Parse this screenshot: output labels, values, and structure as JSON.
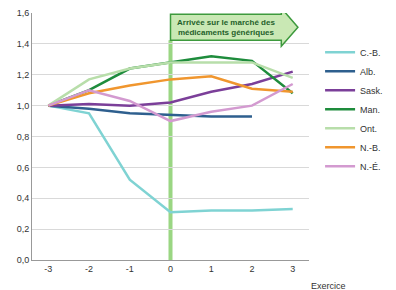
{
  "chart_data": {
    "type": "line",
    "x": [
      -3,
      -2,
      -1,
      0,
      1,
      2,
      3
    ],
    "x_label": "Exercice",
    "series": [
      {
        "name": "C.-B.",
        "color": "#7fd3d3",
        "values": [
          1.0,
          0.95,
          0.52,
          0.31,
          0.32,
          0.32,
          0.33
        ]
      },
      {
        "name": "Alb.",
        "color": "#2e5f8e",
        "values": [
          1.0,
          0.98,
          0.95,
          0.94,
          0.93,
          0.93,
          null
        ]
      },
      {
        "name": "Sask.",
        "color": "#7b3f99",
        "values": [
          1.0,
          1.01,
          1.0,
          1.02,
          1.09,
          1.14,
          1.22
        ]
      },
      {
        "name": "Man.",
        "color": "#1e8c3c",
        "values": [
          1.0,
          1.1,
          1.24,
          1.28,
          1.32,
          1.29,
          1.08
        ]
      },
      {
        "name": "Ont.",
        "color": "#b8deaa",
        "values": [
          1.0,
          1.17,
          1.24,
          1.28,
          1.28,
          1.28,
          1.18
        ]
      },
      {
        "name": "N.-B.",
        "color": "#f0962e",
        "values": [
          1.0,
          1.08,
          1.13,
          1.17,
          1.19,
          1.11,
          1.09
        ]
      },
      {
        "name": "N.-É.",
        "color": "#d39ad0",
        "values": [
          1.0,
          1.1,
          1.03,
          0.9,
          0.96,
          1.0,
          1.14
        ]
      }
    ],
    "xlim": [
      -3.4,
      3.4
    ],
    "xticks": [
      -3,
      -2,
      -1,
      0,
      1,
      2,
      3
    ],
    "ylim": [
      0,
      1.6
    ],
    "yticks": [
      {
        "value": 0,
        "label": "0,0"
      },
      {
        "value": 0.2,
        "label": "0,2"
      },
      {
        "value": 0.4,
        "label": "0,4"
      },
      {
        "value": 0.6,
        "label": "0,6"
      },
      {
        "value": 0.8,
        "label": "0,8"
      },
      {
        "value": 1.0,
        "label": "1,0"
      },
      {
        "value": 1.2,
        "label": "1,2"
      },
      {
        "value": 1.4,
        "label": "1,4"
      },
      {
        "value": 1.6,
        "label": "1,6"
      }
    ],
    "annotations": [
      {
        "lines": [
          "Arrivée sur le marché des",
          "médicaments génériques"
        ],
        "x": 0
      }
    ],
    "grid": true,
    "legend": "right"
  }
}
